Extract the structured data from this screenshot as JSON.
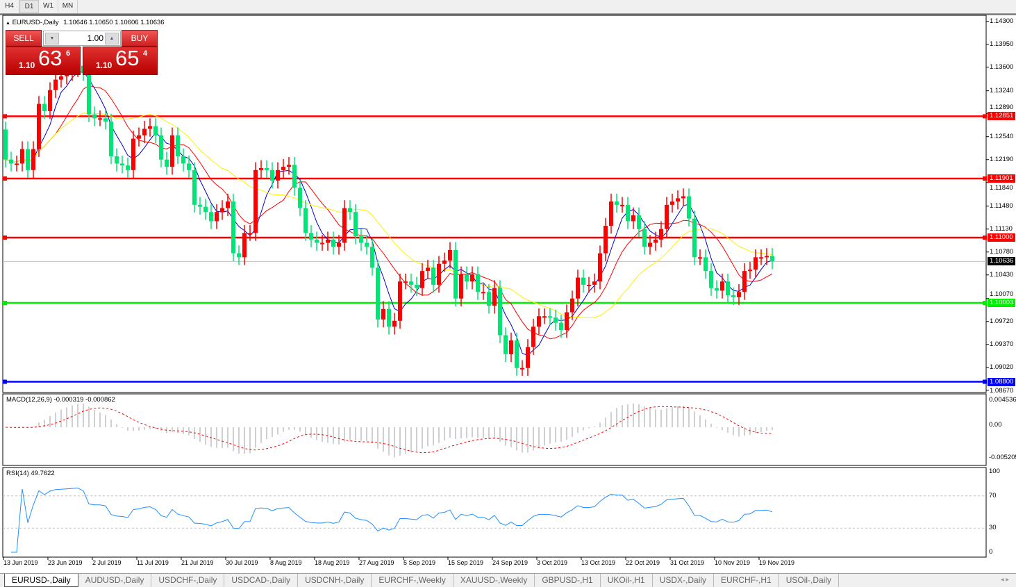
{
  "timeframes": [
    "H4",
    "D1",
    "W1",
    "MN"
  ],
  "active_timeframe": "D1",
  "chart_header": {
    "arrow": "▲",
    "title": "EURUSD-,Daily",
    "ohlc": "1.10646 1.10650 1.10606 1.10636"
  },
  "trade_panel": {
    "sell_label": "SELL",
    "buy_label": "BUY",
    "lot": "1.00",
    "sell": {
      "small": "1.10",
      "main": "63",
      "sup": "6"
    },
    "buy": {
      "small": "1.10",
      "main": "65",
      "sup": "4"
    }
  },
  "macd": {
    "label": "MACD(12,26,9) -0.000319 -0.000862",
    "axis": [
      "0.004536",
      "0.00",
      "-0.005205"
    ]
  },
  "rsi": {
    "label": "RSI(14) 49.7622",
    "axis": [
      "100",
      "70",
      "30",
      "0"
    ]
  },
  "tabs": [
    "EURUSD-,Daily",
    "AUDUSD-,Daily",
    "USDCHF-,Daily",
    "USDCAD-,Daily",
    "USDCNH-,Daily",
    "EURCHF-,Weekly",
    "XAUUSD-,Weekly",
    "GBPUSD-,H1",
    "UKOil-,H1",
    "USDX-,Daily",
    "EURCHF-,H1",
    "USOil-,Daily"
  ],
  "active_tab": "EURUSD-,Daily",
  "colors": {
    "bull": "#ff0000",
    "bear": "#00e676",
    "ma_fast": "#0000cc",
    "ma_mid": "#ff0000",
    "ma_slow": "#ffee00",
    "macd_hist": "#c0c0c0",
    "macd_signal": "#ff0000",
    "rsi": "#1e90ff"
  },
  "chart_data": {
    "type": "candlestick",
    "symbol": "EURUSD-",
    "timeframe": "Daily",
    "ylim": [
      1.0862,
      1.1437
    ],
    "y_ticks": [
      "1.14300",
      "1.13950",
      "1.13600",
      "1.13240",
      "1.12890",
      "1.12540",
      "1.12190",
      "1.11840",
      "1.11480",
      "1.11130",
      "1.10780",
      "1.10430",
      "1.10070",
      "1.09720",
      "1.09370",
      "1.09020",
      "1.08670"
    ],
    "x_ticks": [
      "13 Jun 2019",
      "23 Jun 2019",
      "2 Jul 2019",
      "11 Jul 2019",
      "21 Jul 2019",
      "30 Jul 2019",
      "8 Aug 2019",
      "18 Aug 2019",
      "27 Aug 2019",
      "5 Sep 2019",
      "15 Sep 2019",
      "24 Sep 2019",
      "3 Oct 2019",
      "13 Oct 2019",
      "22 Oct 2019",
      "31 Oct 2019",
      "10 Nov 2019",
      "19 Nov 2019"
    ],
    "x_tick_every_bars": 8,
    "close": [
      1.1219,
      1.1213,
      1.1213,
      1.1235,
      1.1203,
      1.1235,
      1.1304,
      1.1293,
      1.1325,
      1.1341,
      1.1346,
      1.1351,
      1.1357,
      1.1362,
      1.1351,
      1.1288,
      1.1282,
      1.1282,
      1.1277,
      1.1224,
      1.1213,
      1.121,
      1.1203,
      1.1251,
      1.1256,
      1.1266,
      1.127,
      1.1256,
      1.1219,
      1.1208,
      1.1256,
      1.1224,
      1.1213,
      1.1203,
      1.115,
      1.1147,
      1.1139,
      1.1125,
      1.1139,
      1.1145,
      1.1155,
      1.1076,
      1.107,
      1.1107,
      1.1107,
      1.1203,
      1.1206,
      1.1203,
      1.1187,
      1.1203,
      1.1208,
      1.1211,
      1.1176,
      1.1145,
      1.1107,
      1.1097,
      1.1092,
      1.1092,
      1.1097,
      1.1086,
      1.1092,
      1.1145,
      1.1139,
      1.1102,
      1.1092,
      1.1086,
      1.1054,
      1.0975,
      1.0991,
      1.0964,
      1.0973,
      1.1033,
      1.1033,
      1.1028,
      1.1023,
      1.1049,
      1.1054,
      1.1028,
      1.106,
      1.1065,
      1.1081,
      1.1007,
      1.1044,
      1.1033,
      1.1044,
      1.1017,
      1.1017,
      1.0996,
      1.1023,
      1.0951,
      1.0922,
      1.0943,
      1.0901,
      1.0901,
      1.0933,
      1.0964,
      1.098,
      1.098,
      1.0978,
      1.097,
      1.0959,
      1.0986,
      1.1007,
      1.1039,
      1.1028,
      1.1028,
      1.1033,
      1.1076,
      1.1118,
      1.1155,
      1.115,
      1.115,
      1.1125,
      1.1134,
      1.1113,
      1.1086,
      1.1092,
      1.1097,
      1.1113,
      1.115,
      1.1155,
      1.116,
      1.1163,
      1.1129,
      1.107,
      1.107,
      1.1049,
      1.1023,
      1.1019,
      1.1033,
      1.1012,
      1.1009,
      1.1017,
      1.1049,
      1.1051,
      1.107,
      1.107,
      1.1072,
      1.10636
    ],
    "moving_averages": [
      {
        "color": "#0000cc",
        "period": 5
      },
      {
        "color": "#ff0000",
        "period": 10
      },
      {
        "color": "#ffee00",
        "period": 21
      }
    ],
    "levels": [
      {
        "price": "1.12851",
        "color": "#ff0000"
      },
      {
        "price": "1.11901",
        "color": "#ff0000"
      },
      {
        "price": "1.11000",
        "color": "#ff0000"
      },
      {
        "price": "1.10003",
        "color": "#00ee00"
      },
      {
        "price": "1.08800",
        "color": "#0000ff"
      }
    ],
    "current_price": "1.10636"
  }
}
